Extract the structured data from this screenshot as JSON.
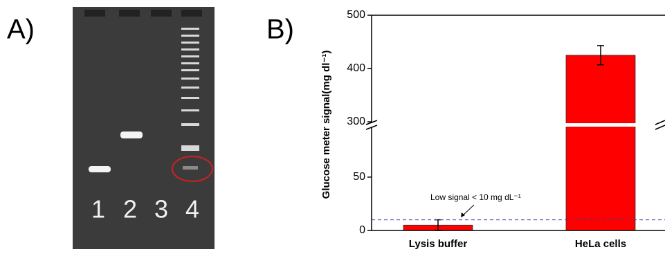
{
  "panel_a": {
    "label": "A)",
    "lanes": [
      "1",
      "2",
      "3",
      "4"
    ]
  },
  "panel_b": {
    "label": "B)"
  },
  "chart_data": {
    "type": "bar",
    "ylabel": "Glucose meter signal(mg dl⁻¹)",
    "categories": [
      "Lysis buffer",
      "HeLa cells"
    ],
    "values": [
      5,
      425
    ],
    "errors": [
      5,
      18
    ],
    "color": "#ff0000",
    "ylim": [
      0,
      500
    ],
    "y_break": [
      96,
      300
    ],
    "yticks": [
      0,
      50,
      300,
      400,
      500
    ],
    "threshold": 10,
    "annotation": "Low signal < 10 mg dL⁻¹"
  }
}
